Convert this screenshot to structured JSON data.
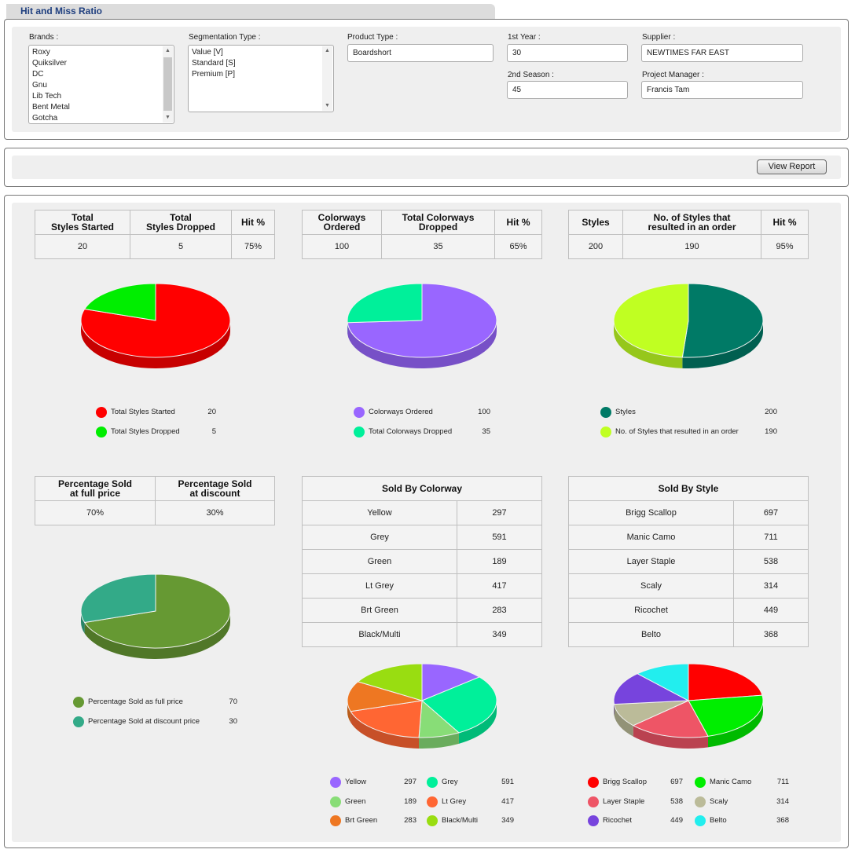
{
  "page": {
    "title": "Hit and Miss Ratio"
  },
  "filters": {
    "brands_label": "Brands :",
    "brands": [
      "Roxy",
      "Quiksilver",
      "DC",
      "Gnu",
      "Lib Tech",
      "Bent Metal",
      "Gotcha"
    ],
    "segmentation_label": "Segmentation Type :",
    "segmentation": [
      "Value [V]",
      "Standard [S]",
      "Premium [P]"
    ],
    "product_type_label": "Product Type :",
    "product_type": "Boardshort",
    "first_year_label": "1st Year :",
    "first_year": "30",
    "second_season_label": "2nd Season :",
    "second_season": "45",
    "supplier_label": "Supplier :",
    "supplier": "NEWTIMES FAR EAST",
    "pm_label": "Project Manager :",
    "pm": "Francis Tam"
  },
  "actions": {
    "view_report": "View Report"
  },
  "styles_table": {
    "headers": [
      "Total\nStyles Started",
      "Total\nStyles Dropped",
      "Hit %"
    ],
    "values": [
      "20",
      "5",
      "75%"
    ]
  },
  "colorways_table": {
    "headers": [
      "Colorways\nOrdered",
      "Total Colorways\nDropped",
      "Hit %"
    ],
    "values": [
      "100",
      "35",
      "65%"
    ]
  },
  "orders_table": {
    "headers": [
      "Styles",
      "No. of Styles that\nresulted in an order",
      "Hit %"
    ],
    "values": [
      "200",
      "190",
      "95%"
    ]
  },
  "sold_pct_table": {
    "headers": [
      "Percentage Sold\nat full price",
      "Percentage Sold\nat discount"
    ],
    "values": [
      "70%",
      "30%"
    ]
  },
  "sold_colorway_table": {
    "header": "Sold By Colorway",
    "rows": [
      [
        "Yellow",
        "297"
      ],
      [
        "Grey",
        "591"
      ],
      [
        "Green",
        "189"
      ],
      [
        "Lt Grey",
        "417"
      ],
      [
        "Brt Green",
        "283"
      ],
      [
        "Black/Multi",
        "349"
      ]
    ]
  },
  "sold_style_table": {
    "header": "Sold By Style",
    "rows": [
      [
        "Brigg Scallop",
        "697"
      ],
      [
        "Manic Camo",
        "711"
      ],
      [
        "Layer Staple",
        "538"
      ],
      [
        "Scaly",
        "314"
      ],
      [
        "Ricochet",
        "449"
      ],
      [
        "Belto",
        "368"
      ]
    ]
  },
  "chart_data": [
    {
      "type": "pie",
      "categories": [
        "Total Styles Started",
        "Total Styles Dropped"
      ],
      "values": [
        20,
        5
      ],
      "colors": [
        "#ff0000",
        "#00ee00"
      ]
    },
    {
      "type": "pie",
      "categories": [
        "Colorways Ordered",
        "Total Colorways Dropped"
      ],
      "values": [
        100,
        35
      ],
      "colors": [
        "#9966ff",
        "#00f09a"
      ]
    },
    {
      "type": "pie",
      "categories": [
        "Styles",
        "No. of Styles that resulted in an order"
      ],
      "values": [
        200,
        190
      ],
      "colors": [
        "#007a66",
        "#c0ff22"
      ]
    },
    {
      "type": "pie",
      "categories": [
        "Percentage Sold as full price",
        "Percentage Sold at discount price"
      ],
      "values": [
        70,
        30
      ],
      "colors": [
        "#669933",
        "#33aa88"
      ]
    },
    {
      "type": "pie",
      "categories": [
        "Yellow",
        "Grey",
        "Green",
        "Lt Grey",
        "Brt Green",
        "Black/Multi"
      ],
      "values": [
        297,
        591,
        189,
        417,
        283,
        349
      ],
      "colors": [
        "#9966ff",
        "#00f09a",
        "#88dd77",
        "#ff6633",
        "#ee7722",
        "#99dd11"
      ]
    },
    {
      "type": "pie",
      "categories": [
        "Brigg Scallop",
        "Manic Camo",
        "Layer Staple",
        "Scaly",
        "Ricochet",
        "Belto"
      ],
      "values": [
        697,
        711,
        538,
        314,
        449,
        368
      ],
      "colors": [
        "#ff0000",
        "#00ee00",
        "#ee5566",
        "#bbbb99",
        "#7744dd",
        "#22eeee"
      ]
    }
  ]
}
